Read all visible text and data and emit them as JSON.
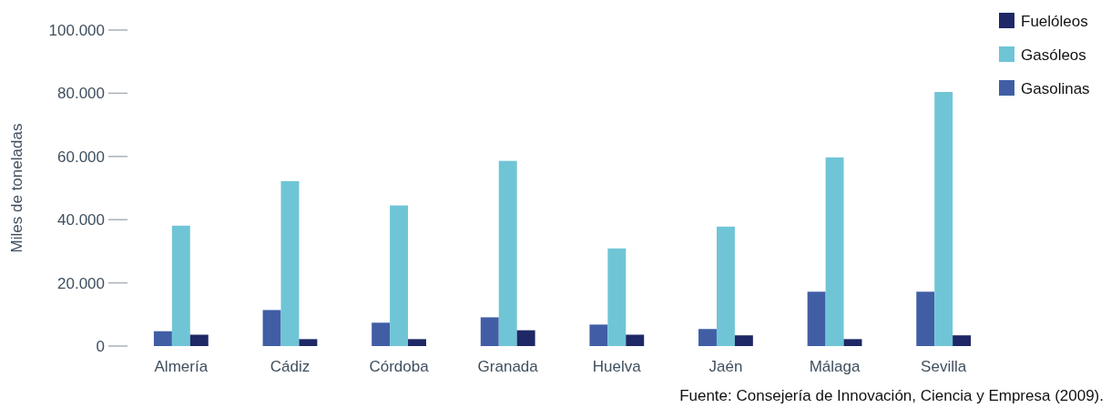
{
  "chart_data": {
    "type": "bar",
    "ylabel": "Miles de toneladas",
    "categories": [
      "Almería",
      "Cádiz",
      "Córdoba",
      "Granada",
      "Huelva",
      "Jaén",
      "Málaga",
      "Sevilla"
    ],
    "series": [
      {
        "name": "Gasolinas",
        "color": "#415ea5",
        "values": [
          4700,
          11400,
          7400,
          9100,
          6800,
          5400,
          17200,
          17200
        ]
      },
      {
        "name": "Gasóleos",
        "color": "#6fc5d6",
        "values": [
          38100,
          52200,
          44500,
          58600,
          30900,
          37800,
          59700,
          80400
        ]
      },
      {
        "name": "Fuelóleos",
        "color": "#1e2866",
        "values": [
          3600,
          2200,
          2200,
          5000,
          3600,
          3400,
          2200,
          3400
        ]
      }
    ],
    "ylim": [
      0,
      100000
    ],
    "yticks": [
      {
        "value": 0,
        "label": "0"
      },
      {
        "value": 20000,
        "label": "20.000"
      },
      {
        "value": 40000,
        "label": "40.000"
      },
      {
        "value": 60000,
        "label": "60.000"
      },
      {
        "value": 80000,
        "label": "80.000"
      },
      {
        "value": 100000,
        "label": "100.000"
      }
    ],
    "grid": false,
    "legend": "top right",
    "annotations": [
      "Fuente: Consejería de Innovación, Ciencia y Empresa (2009)."
    ]
  }
}
